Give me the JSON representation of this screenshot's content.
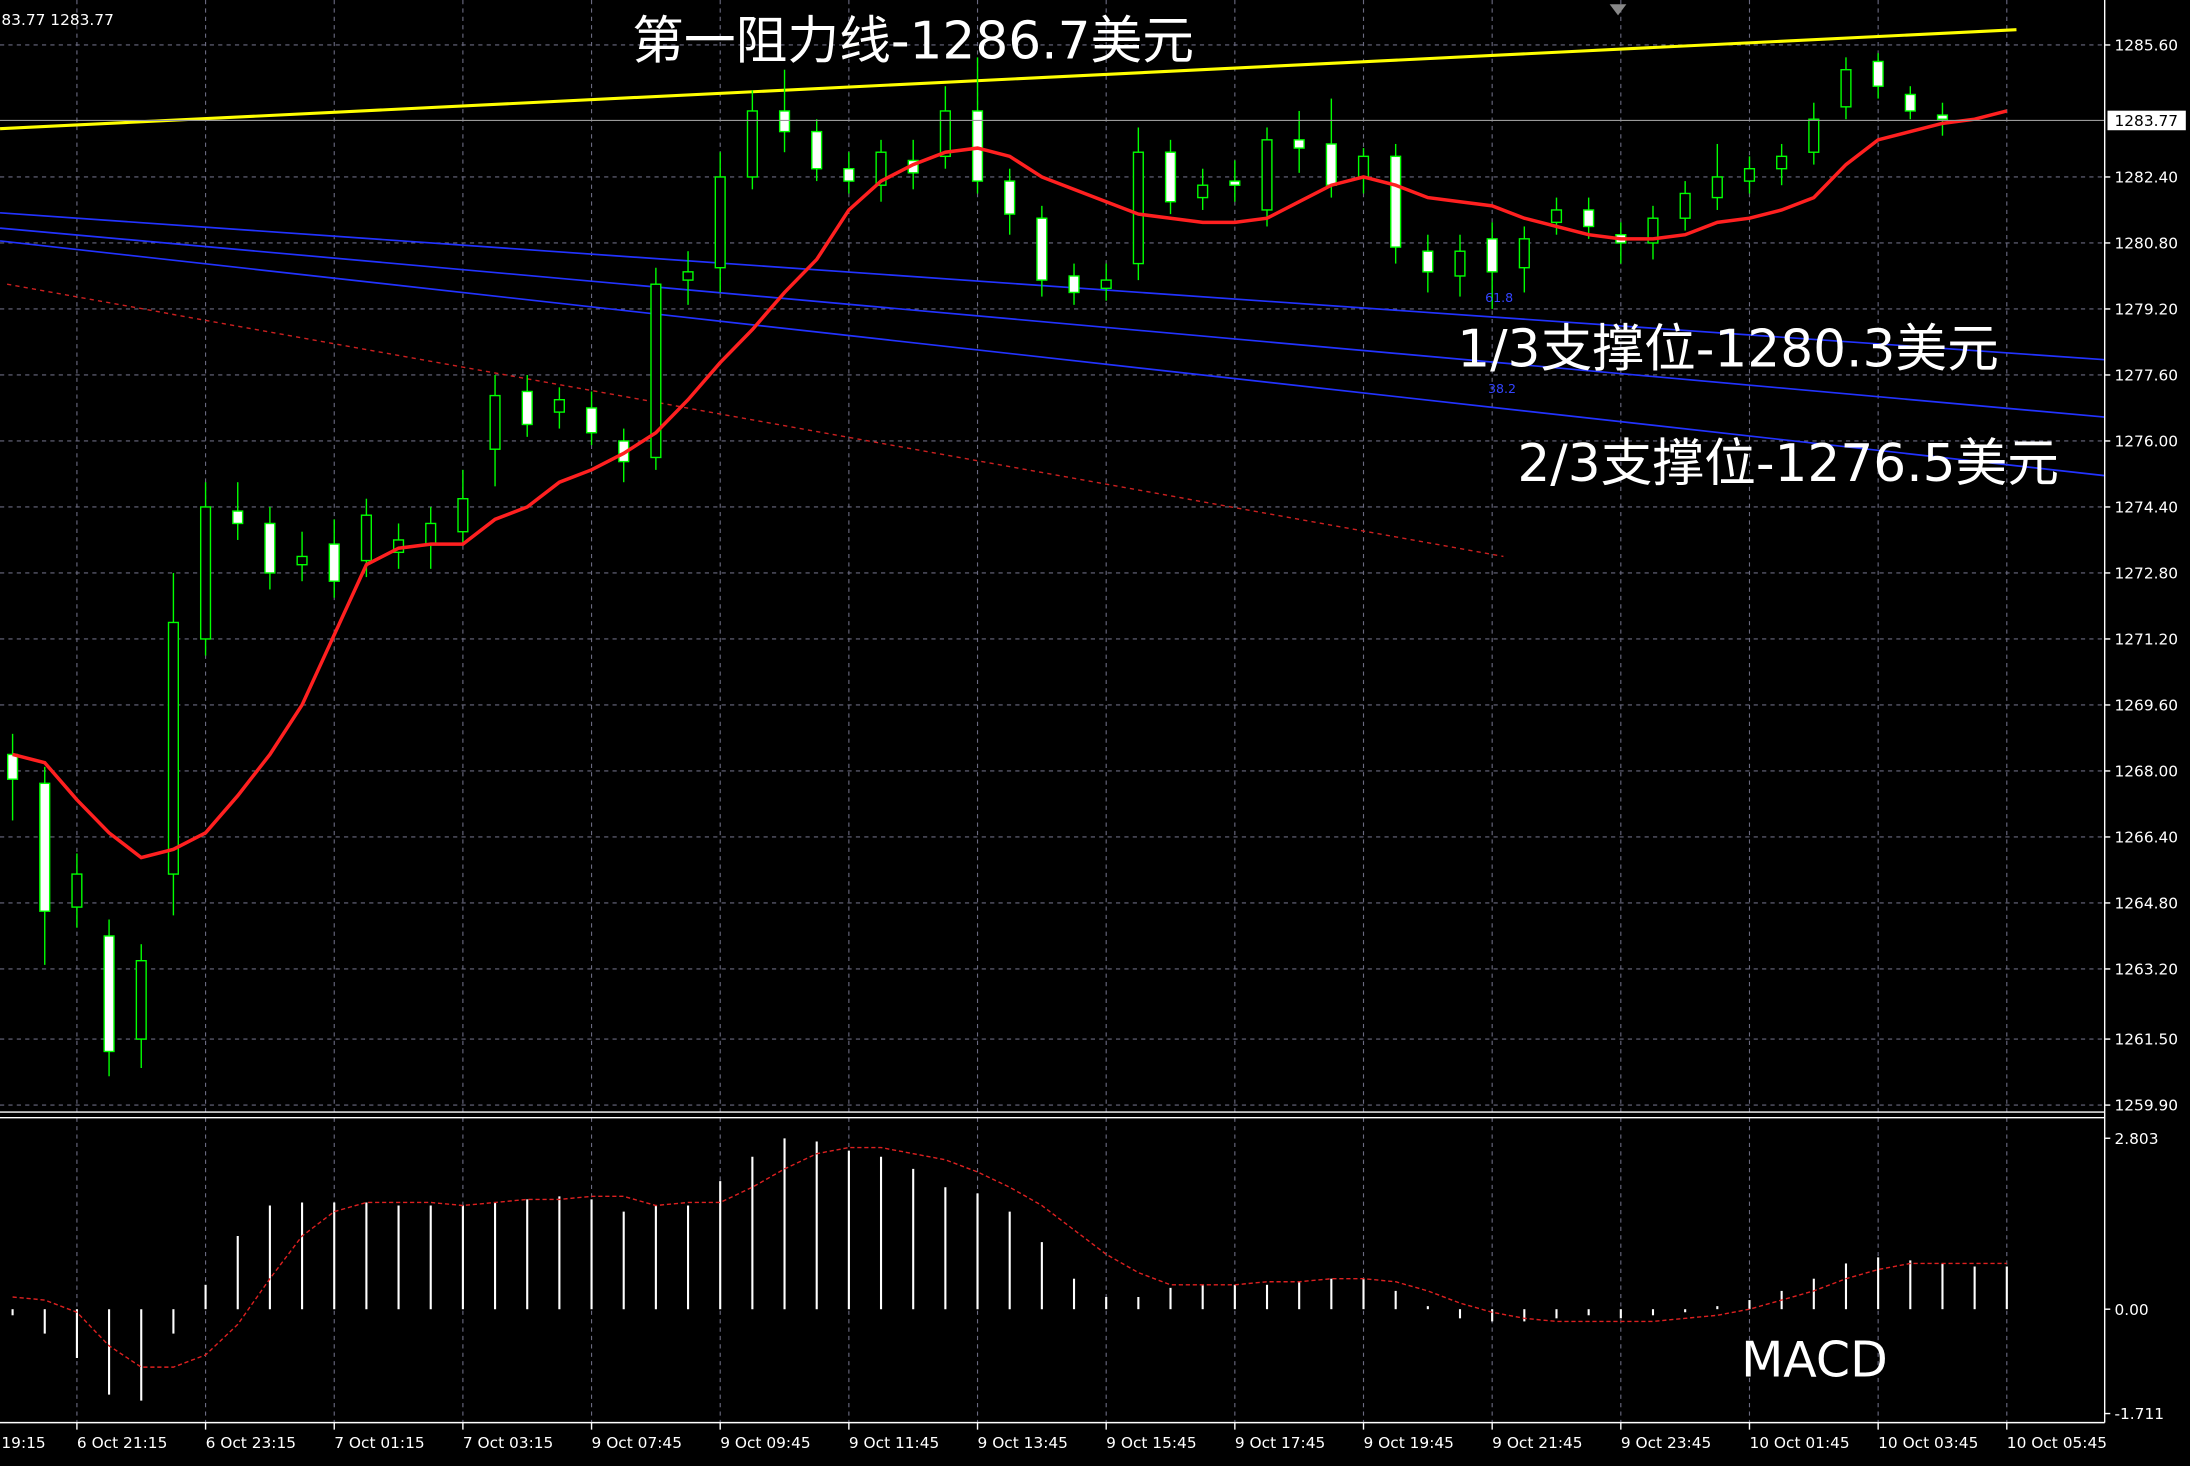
{
  "chart_data": {
    "type": "candlestick",
    "top_label": "83.77 1283.77",
    "categories": [
      "19:15",
      null,
      null,
      null,
      "6 Oct 21:15",
      null,
      null,
      null,
      "6 Oct 23:15",
      null,
      null,
      null,
      "7 Oct 01:15",
      null,
      null,
      null,
      "7 Oct 03:15",
      null,
      null,
      null,
      "9 Oct 07:45",
      null,
      null,
      null,
      "9 Oct 09:45",
      null,
      null,
      null,
      "9 Oct 11:45",
      null,
      null,
      null,
      "9 Oct 13:45",
      null,
      null,
      null,
      "9 Oct 15:45",
      null,
      null,
      null,
      "9 Oct 17:45",
      null,
      null,
      null,
      "9 Oct 19:45",
      null,
      null,
      null,
      "9 Oct 21:45",
      null,
      null,
      null,
      "9 Oct 23:45",
      null,
      null,
      null,
      "10 Oct 01:45",
      null,
      null,
      null,
      "10 Oct 03:45",
      null,
      null,
      null,
      "10 Oct 05:45"
    ],
    "open": [
      null,
      null,
      1268.4,
      1267.7,
      1264.7,
      1264.0,
      1261.5,
      1265.5,
      1271.2,
      1274.3,
      1274.0,
      1273.0,
      1273.5,
      1273.1,
      1273.3,
      1273.5,
      1273.8,
      1275.8,
      1277.2,
      1276.7,
      1276.8,
      1276.0,
      1275.6,
      1279.9,
      1280.2,
      1282.4,
      1284.0,
      1283.5,
      1282.6,
      1282.2,
      1282.8,
      1282.9,
      1284.0,
      1282.3,
      1281.4,
      1280.0,
      1279.7,
      1280.3,
      1283.0,
      1281.9,
      1282.3,
      1281.6,
      1283.3,
      1283.2,
      1282.4,
      1282.9,
      1280.6,
      1280.0,
      1280.9,
      1280.2,
      1281.3,
      1281.6,
      1281.0,
      1280.8,
      1281.4,
      1281.9,
      1282.3,
      1282.6,
      1283.0,
      1284.1,
      1285.2,
      1284.4,
      1283.9,
      null,
      null
    ],
    "high": [
      null,
      null,
      1268.9,
      1268.1,
      1266.0,
      1264.4,
      1263.8,
      1272.8,
      1275.0,
      1275.0,
      1274.4,
      1273.8,
      1274.1,
      1274.6,
      1274.0,
      1274.4,
      1275.3,
      1277.6,
      1277.6,
      1277.3,
      1277.2,
      1276.3,
      1280.2,
      1280.6,
      1283.0,
      1284.5,
      1285.0,
      1283.8,
      1283.0,
      1283.3,
      1283.3,
      1284.6,
      1285.3,
      1282.6,
      1281.7,
      1280.3,
      1280.3,
      1283.6,
      1283.3,
      1282.6,
      1282.8,
      1283.6,
      1284.0,
      1284.3,
      1283.1,
      1283.2,
      1281.0,
      1281.0,
      1281.3,
      1281.2,
      1281.9,
      1281.9,
      1281.3,
      1281.7,
      1282.3,
      1283.2,
      1282.9,
      1283.2,
      1284.2,
      1285.3,
      1285.4,
      1284.6,
      1284.2,
      null,
      null
    ],
    "low": [
      null,
      null,
      1266.8,
      1263.3,
      1264.2,
      1260.6,
      1260.8,
      1264.5,
      1270.8,
      1273.6,
      1272.4,
      1272.6,
      1272.2,
      1272.7,
      1272.9,
      1272.9,
      1273.5,
      1274.9,
      1276.1,
      1276.3,
      1275.9,
      1275.0,
      1275.3,
      1279.3,
      1279.6,
      1282.1,
      1283.0,
      1282.3,
      1282.0,
      1281.8,
      1282.1,
      1282.6,
      1282.0,
      1281.0,
      1279.5,
      1279.3,
      1279.4,
      1279.9,
      1281.5,
      1281.6,
      1281.8,
      1281.2,
      1282.5,
      1281.9,
      1282.0,
      1280.3,
      1279.6,
      1279.5,
      1279.2,
      1279.6,
      1281.0,
      1280.9,
      1280.3,
      1280.4,
      1281.1,
      1281.6,
      1282.0,
      1282.2,
      1282.7,
      1283.8,
      1284.3,
      1283.8,
      1283.4,
      null,
      null
    ],
    "close": [
      null,
      null,
      1267.8,
      1264.6,
      1265.5,
      1261.2,
      1263.4,
      1271.6,
      1274.4,
      1274.0,
      1272.8,
      1273.2,
      1272.6,
      1274.2,
      1273.6,
      1274.0,
      1274.6,
      1277.1,
      1276.4,
      1277.0,
      1276.2,
      1275.5,
      1279.8,
      1280.1,
      1282.4,
      1284.0,
      1283.5,
      1282.6,
      1282.3,
      1283.0,
      1282.5,
      1284.0,
      1282.3,
      1281.5,
      1279.9,
      1279.6,
      1279.9,
      1283.0,
      1281.8,
      1282.2,
      1282.2,
      1283.3,
      1283.1,
      1282.2,
      1282.9,
      1280.7,
      1280.1,
      1280.6,
      1280.1,
      1280.9,
      1281.6,
      1281.2,
      1280.8,
      1281.4,
      1282.0,
      1282.4,
      1282.6,
      1282.9,
      1283.8,
      1285.0,
      1284.6,
      1284.0,
      1283.8,
      null,
      null
    ],
    "up_color": "#000000",
    "down_color": "#ffffff",
    "wick_color": "#00ff00",
    "ma": {
      "color": "#ff2020",
      "values": [
        null,
        null,
        1268.4,
        1268.2,
        1267.3,
        1266.5,
        1265.9,
        1266.1,
        1266.5,
        1267.4,
        1268.4,
        1269.6,
        1271.3,
        1273.0,
        1273.4,
        1273.5,
        1273.5,
        1274.1,
        1274.4,
        1275.0,
        1275.3,
        1275.7,
        1276.2,
        1277.0,
        1277.9,
        1278.7,
        1279.6,
        1280.4,
        1281.6,
        1282.3,
        1282.7,
        1283.0,
        1283.1,
        1282.9,
        1282.4,
        1282.1,
        1281.8,
        1281.5,
        1281.4,
        1281.3,
        1281.3,
        1281.4,
        1281.8,
        1282.2,
        1282.4,
        1282.2,
        1281.9,
        1281.8,
        1281.7,
        1281.4,
        1281.2,
        1281.0,
        1280.9,
        1280.9,
        1281.0,
        1281.3,
        1281.4,
        1281.6,
        1281.9,
        1282.7,
        1283.3,
        1283.5,
        1283.7,
        1283.8,
        1284.0
      ]
    },
    "trend_lines": [
      {
        "color": "#ffff00",
        "x": [
          1.61,
          64.3
        ],
        "values": [
          1283.57,
          1285.97
        ]
      },
      {
        "color": "#2233ff",
        "x": [
          1.61,
          67.04
        ],
        "values": [
          1281.53,
          1277.97
        ]
      },
      {
        "color": "#2233ff",
        "x": [
          1.61,
          67.04
        ],
        "values": [
          1281.16,
          1276.58
        ]
      },
      {
        "color": "#2233ff",
        "x": [
          1.61,
          67.04
        ],
        "values": [
          1280.85,
          1275.16
        ]
      },
      {
        "color": "#cc2020",
        "dashed": true,
        "x": [
          1.83,
          48.35
        ],
        "values": [
          1279.8,
          1273.2
        ]
      }
    ],
    "fib_labels": [
      "61.8",
      "38.2"
    ],
    "annotations": [
      "第一阻力线-1286.7美元",
      "1/3支撑位-1280.3美元",
      "2/3支撑位-1276.5美元"
    ],
    "ylim": [
      1259.73,
      1286.69
    ],
    "yticks": [
      {
        "value": 1285.6,
        "label": "1285.60"
      },
      {
        "value": 1282.4,
        "label": "1282.40"
      },
      {
        "value": 1280.8,
        "label": "1280.80"
      },
      {
        "value": 1279.2,
        "label": "1279.20"
      },
      {
        "value": 1277.6,
        "label": "1277.60"
      },
      {
        "value": 1276,
        "label": "1276.00"
      },
      {
        "value": 1274.4,
        "label": "1274.40"
      },
      {
        "value": 1272.8,
        "label": "1272.80"
      },
      {
        "value": 1271.2,
        "label": "1271.20"
      },
      {
        "value": 1269.6,
        "label": "1269.60"
      },
      {
        "value": 1268,
        "label": "1268.00"
      },
      {
        "value": 1266.4,
        "label": "1266.40"
      },
      {
        "value": 1264.8,
        "label": "1264.80"
      },
      {
        "value": 1263.2,
        "label": "1263.20"
      },
      {
        "value": 1261.5,
        "label": "1261.50"
      },
      {
        "value": 1259.9,
        "label": "1259.90"
      }
    ],
    "current_price": 1283.77,
    "grid": true,
    "macd": {
      "label": "MACD",
      "ylim": [
        -1.86,
        3.14
      ],
      "yticks": [
        2.803,
        {
          "value": 0,
          "label": "0.00"
        },
        -1.711
      ],
      "hist": {
        "color": "#ffffff",
        "values": [
          null,
          null,
          -0.1,
          -0.4,
          -0.8,
          -1.4,
          -1.5,
          -0.4,
          0.4,
          1.2,
          1.7,
          1.75,
          1.75,
          1.75,
          1.7,
          1.7,
          1.7,
          1.75,
          1.8,
          1.85,
          1.8,
          1.6,
          1.7,
          1.7,
          2.1,
          2.5,
          2.8,
          2.75,
          2.6,
          2.5,
          2.3,
          2.0,
          1.9,
          1.6,
          1.1,
          0.5,
          0.2,
          0.2,
          0.35,
          0.4,
          0.4,
          0.4,
          0.45,
          0.5,
          0.5,
          0.3,
          0.05,
          -0.15,
          -0.2,
          -0.2,
          -0.15,
          -0.1,
          -0.15,
          -0.1,
          -0.05,
          0.05,
          0.15,
          0.3,
          0.5,
          0.75,
          0.85,
          0.8,
          0.75,
          0.7,
          0.7
        ]
      },
      "signal": {
        "color": "#dd2020",
        "values": [
          null,
          null,
          0.2,
          0.15,
          -0.05,
          -0.6,
          -0.95,
          -0.95,
          -0.75,
          -0.25,
          0.5,
          1.2,
          1.6,
          1.75,
          1.75,
          1.75,
          1.7,
          1.75,
          1.8,
          1.8,
          1.85,
          1.85,
          1.7,
          1.75,
          1.75,
          2.0,
          2.3,
          2.55,
          2.65,
          2.65,
          2.55,
          2.45,
          2.25,
          2.0,
          1.7,
          1.3,
          0.9,
          0.6,
          0.4,
          0.4,
          0.4,
          0.45,
          0.45,
          0.5,
          0.5,
          0.45,
          0.3,
          0.1,
          -0.05,
          -0.15,
          -0.2,
          -0.2,
          -0.2,
          -0.2,
          -0.15,
          -0.1,
          0.0,
          0.15,
          0.3,
          0.5,
          0.65,
          0.75,
          0.75,
          0.75,
          0.75
        ]
      }
    }
  }
}
